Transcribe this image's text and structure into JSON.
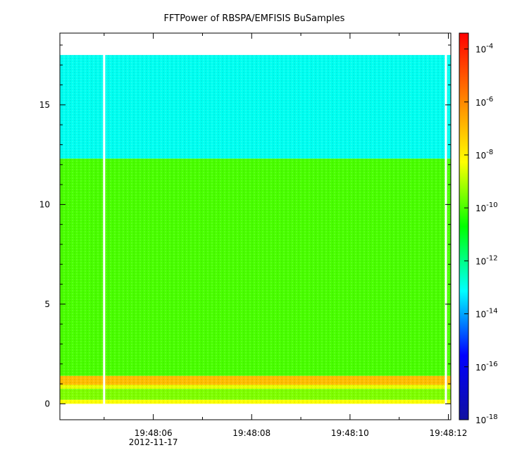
{
  "chart_data": {
    "type": "heatmap",
    "title": "FFTPower of RBSPA/EMFISIS  BuSamples",
    "xlabel": "",
    "ylabel": "",
    "x_ticks": [
      "19:48:06",
      "19:48:08",
      "19:48:10",
      "19:48:12"
    ],
    "x_tick_seconds": [
      6,
      8,
      10,
      12
    ],
    "x_minor_seconds": [
      5,
      7,
      9,
      11
    ],
    "x_range_seconds": [
      4.1,
      12.05
    ],
    "x_date_label": "2012-11-17",
    "y_ticks": [
      "0",
      "5",
      "10",
      "15"
    ],
    "y_tick_values": [
      0,
      5,
      10,
      15
    ],
    "ylim": [
      -0.8,
      18.6
    ],
    "data_extent": {
      "y_max": 17.5,
      "y_min": 0
    },
    "gaps_seconds": [
      5.0,
      11.95
    ],
    "bands": [
      {
        "y_from": 12.3,
        "y_to": 17.5,
        "log_power": -13.0
      },
      {
        "y_from": 1.4,
        "y_to": 12.3,
        "log_power": -10.0
      },
      {
        "y_from": 0.95,
        "y_to": 1.4,
        "log_power": -7.0
      },
      {
        "y_from": 0.75,
        "y_to": 0.95,
        "log_power": -8.5
      },
      {
        "y_from": 0.2,
        "y_to": 0.75,
        "log_power": -9.5
      },
      {
        "y_from": 0.0,
        "y_to": 0.2,
        "log_power": -8.3
      }
    ],
    "colorbar": {
      "scale": "log",
      "min_exp": -18,
      "max_exp": -3.4,
      "tick_labels": [
        {
          "base": "10",
          "exp": "-4"
        },
        {
          "base": "10",
          "exp": "-6"
        },
        {
          "base": "10",
          "exp": "-8"
        },
        {
          "base": "10",
          "exp": "-10"
        },
        {
          "base": "10",
          "exp": "-12"
        },
        {
          "base": "10",
          "exp": "-14"
        },
        {
          "base": "10",
          "exp": "-16"
        },
        {
          "base": "10",
          "exp": "-18"
        }
      ],
      "tick_exponents": [
        -4,
        -6,
        -8,
        -10,
        -12,
        -14,
        -16,
        -18
      ],
      "colors": [
        "#1010a0",
        "#0000ff",
        "#00ffff",
        "#00ff00",
        "#ffff00",
        "#ff8000",
        "#ff0000"
      ]
    }
  }
}
